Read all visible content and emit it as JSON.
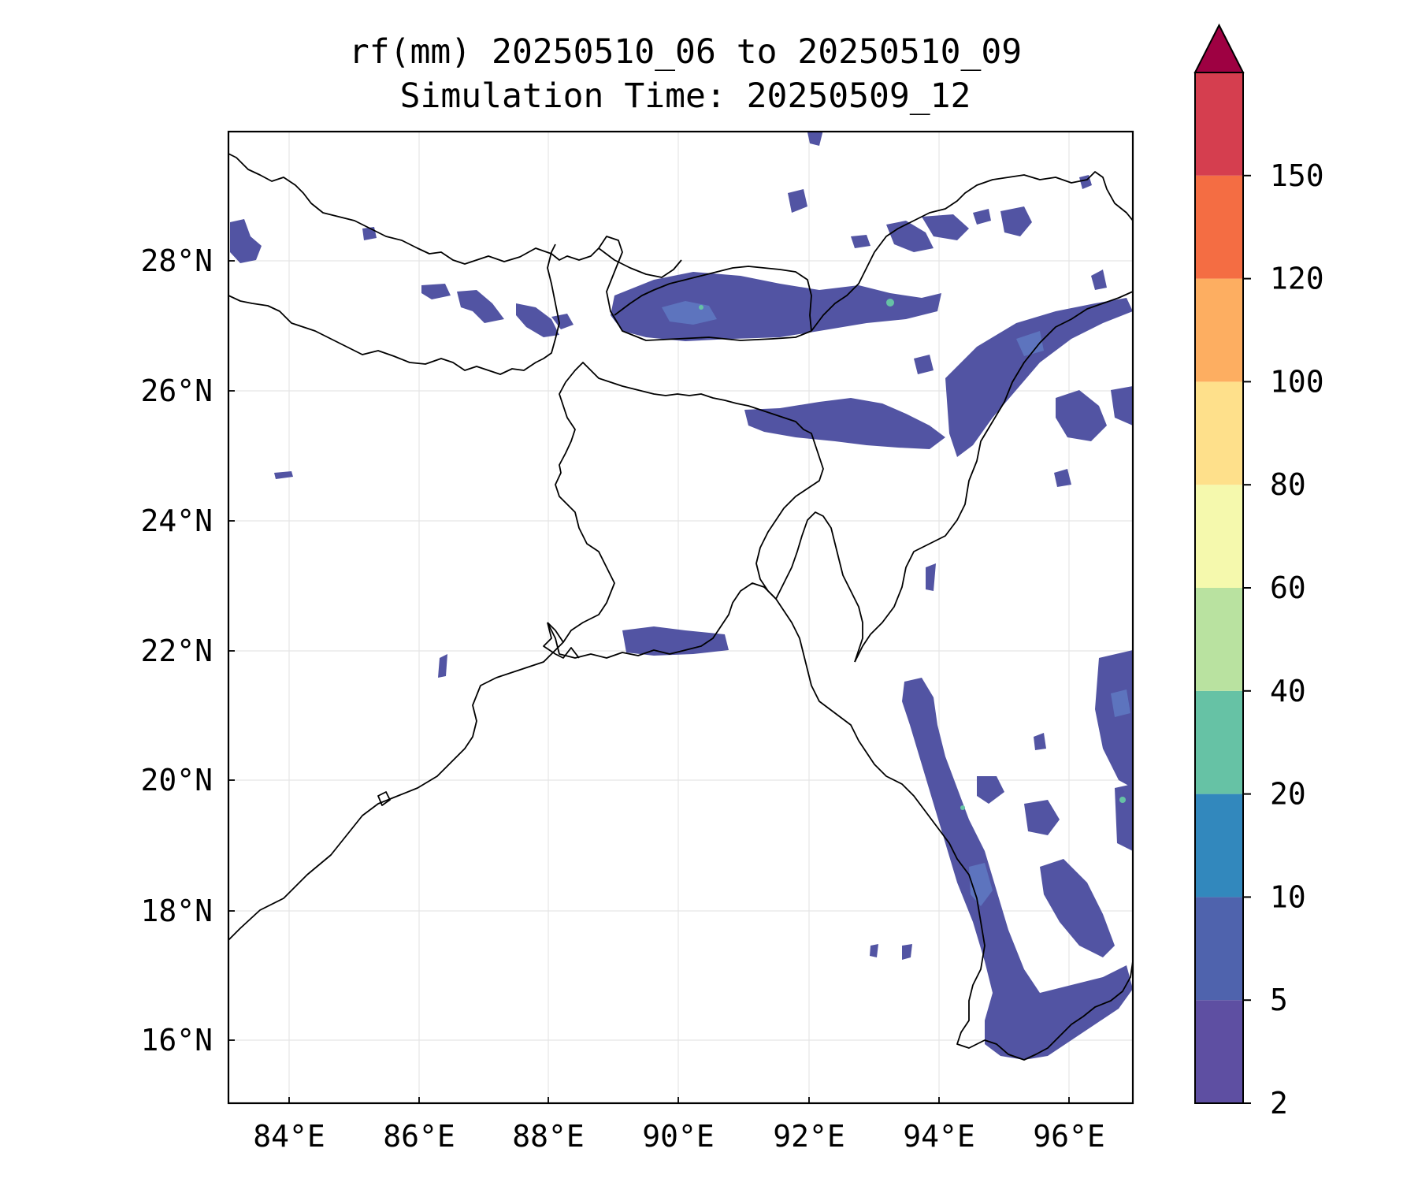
{
  "title": {
    "line1": "rf(mm) 20250510_06 to 20250510_09",
    "line2": "Simulation Time: 20250509_12"
  },
  "map": {
    "lon_range": [
      83.1,
      96.9
    ],
    "lat_range": [
      15.1,
      29.9
    ],
    "x_ticks": [
      "84°E",
      "86°E",
      "88°E",
      "90°E",
      "92°E",
      "94°E",
      "96°E"
    ],
    "y_ticks": [
      "28°N",
      "26°N",
      "24°N",
      "22°N",
      "20°N",
      "18°N",
      "16°N"
    ],
    "grid": true,
    "rain_color": "#5254a3",
    "light_patch_color": "#5e78c1",
    "peak_color": "#66c2a5"
  },
  "colorbar": {
    "levels": [
      "2",
      "5",
      "10",
      "20",
      "40",
      "60",
      "80",
      "100",
      "120",
      "150"
    ],
    "colors": [
      "#5e4fa2",
      "#4f63ad",
      "#3288bd",
      "#66c2a5",
      "#b9e2a0",
      "#f5f9ad",
      "#fee08b",
      "#fdae61",
      "#f46d43",
      "#d53e4f"
    ],
    "extend_color": "#9e0142"
  }
}
